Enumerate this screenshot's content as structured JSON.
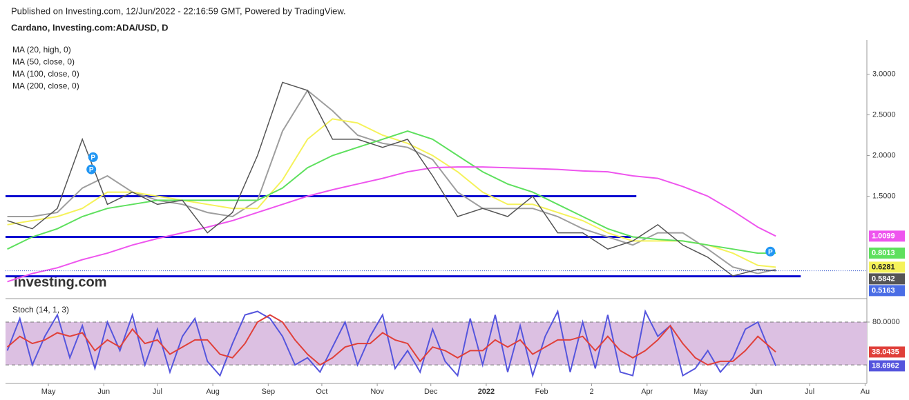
{
  "header": {
    "published": "Published on Investing.com, 12/Jun/2022 - 22:16:59 GMT, Powered by TradingView.",
    "symbol": "Cardano, Investing.com:ADA/USD, D",
    "logo": "Investing.com"
  },
  "chart_data": [
    {
      "type": "line",
      "xlim": [
        6,
        488
      ],
      "ylim": [
        0.25,
        3.42
      ],
      "yticks": [
        {
          "value": 1.5,
          "label": "1.5000"
        },
        {
          "value": 2,
          "label": "2.0000"
        },
        {
          "value": 2.5,
          "label": "2.5000"
        },
        {
          "value": 3,
          "label": "3.0000"
        }
      ],
      "x": [
        7,
        21,
        35,
        49,
        63,
        77,
        91,
        105,
        119,
        133,
        147,
        161,
        175,
        189,
        203,
        217,
        231,
        245,
        259,
        273,
        287,
        301,
        315,
        329,
        343,
        357,
        371,
        385,
        399,
        413,
        427,
        437
      ],
      "close": {
        "color": "#555555",
        "values": [
          1.2,
          1.1,
          1.35,
          2.2,
          1.4,
          1.55,
          1.4,
          1.45,
          1.05,
          1.3,
          2.0,
          2.9,
          2.8,
          2.2,
          2.2,
          2.1,
          2.2,
          1.75,
          1.25,
          1.35,
          1.25,
          1.5,
          1.05,
          1.05,
          0.85,
          0.95,
          1.15,
          0.9,
          0.75,
          0.52,
          0.6,
          0.5842
        ]
      },
      "series": [
        {
          "name": "MA (20, high, 0)",
          "color": "#9e9e9e",
          "values": [
            1.25,
            1.25,
            1.3,
            1.6,
            1.75,
            1.55,
            1.45,
            1.4,
            1.3,
            1.25,
            1.45,
            2.3,
            2.8,
            2.55,
            2.25,
            2.15,
            2.1,
            1.95,
            1.55,
            1.35,
            1.35,
            1.35,
            1.25,
            1.1,
            1.0,
            0.9,
            1.05,
            1.05,
            0.85,
            0.63,
            0.55,
            0.6
          ]
        },
        {
          "name": "MA (50, close, 0)",
          "color": "#f5f25a",
          "values": [
            1.15,
            1.2,
            1.25,
            1.35,
            1.55,
            1.55,
            1.5,
            1.45,
            1.4,
            1.35,
            1.35,
            1.7,
            2.2,
            2.45,
            2.4,
            2.25,
            2.15,
            2.0,
            1.8,
            1.55,
            1.4,
            1.4,
            1.3,
            1.2,
            1.05,
            0.95,
            0.95,
            0.95,
            0.9,
            0.8,
            0.65,
            0.6281
          ]
        },
        {
          "name": "MA (100, close, 0)",
          "color": "#5ee05e",
          "values": [
            0.85,
            1.0,
            1.1,
            1.25,
            1.35,
            1.4,
            1.45,
            1.45,
            1.45,
            1.45,
            1.45,
            1.6,
            1.85,
            2.0,
            2.1,
            2.2,
            2.3,
            2.2,
            2.0,
            1.8,
            1.65,
            1.55,
            1.4,
            1.25,
            1.1,
            1.0,
            0.97,
            0.95,
            0.9,
            0.85,
            0.8,
            0.8013
          ]
        },
        {
          "name": "MA (200, close, 0)",
          "color": "#ee55ee",
          "values": [
            0.45,
            0.55,
            0.62,
            0.72,
            0.8,
            0.9,
            0.98,
            1.05,
            1.12,
            1.2,
            1.3,
            1.4,
            1.5,
            1.58,
            1.65,
            1.72,
            1.8,
            1.85,
            1.86,
            1.86,
            1.85,
            1.84,
            1.83,
            1.81,
            1.8,
            1.75,
            1.72,
            1.62,
            1.5,
            1.32,
            1.12,
            1.0099
          ]
        }
      ],
      "levels": [
        {
          "value": 1.5,
          "end": 359,
          "color": "#0a0ad0"
        },
        {
          "value": 1.0,
          "end": 356,
          "color": "#0a0ad0"
        },
        {
          "value": 0.5163,
          "end": 451,
          "color": "#0a0ad0"
        }
      ],
      "markers": {
        "label": "P",
        "color": "#2196f3",
        "points": [
          {
            "x": 55,
            "y": 1.98
          },
          {
            "x": 54,
            "y": 1.83
          },
          {
            "x": 434,
            "y": 0.82
          }
        ]
      }
    },
    {
      "type": "line",
      "title": "Stoch (14, 1, 3)",
      "xlim": [
        6,
        488
      ],
      "ylim": [
        -5,
        108
      ],
      "yticks": [
        {
          "value": 80,
          "label": "80.0000"
        }
      ],
      "band": [
        20,
        80
      ],
      "band_color": "#dcc0e2",
      "xticks": [
        {
          "value": 30,
          "label": "May"
        },
        {
          "value": 61,
          "label": "Jun"
        },
        {
          "value": 91,
          "label": "Jul"
        },
        {
          "value": 122,
          "label": "Aug"
        },
        {
          "value": 153,
          "label": "Sep"
        },
        {
          "value": 183,
          "label": "Oct"
        },
        {
          "value": 214,
          "label": "Nov"
        },
        {
          "value": 244,
          "label": "Dec"
        },
        {
          "value": 275,
          "label": "2022"
        },
        {
          "value": 306,
          "label": "Feb"
        },
        {
          "value": 334,
          "label": "2"
        },
        {
          "value": 365,
          "label": "Apr"
        },
        {
          "value": 395,
          "label": "May"
        },
        {
          "value": 426,
          "label": "Jun"
        },
        {
          "value": 456,
          "label": "Jul"
        },
        {
          "value": 487,
          "label": "Au"
        }
      ],
      "x": [
        7,
        14,
        21,
        28,
        35,
        42,
        49,
        56,
        63,
        70,
        77,
        84,
        91,
        98,
        105,
        112,
        119,
        126,
        133,
        140,
        147,
        154,
        161,
        168,
        175,
        182,
        189,
        196,
        203,
        210,
        217,
        224,
        231,
        238,
        245,
        252,
        259,
        266,
        273,
        280,
        287,
        294,
        301,
        308,
        315,
        322,
        329,
        336,
        343,
        350,
        357,
        364,
        371,
        378,
        385,
        392,
        399,
        406,
        413,
        420,
        427,
        437
      ],
      "series": [
        {
          "color": "#5555dd",
          "values": [
            40,
            85,
            20,
            60,
            90,
            30,
            75,
            15,
            80,
            40,
            90,
            20,
            70,
            10,
            60,
            85,
            25,
            5,
            50,
            90,
            95,
            85,
            60,
            20,
            30,
            10,
            45,
            80,
            20,
            60,
            90,
            15,
            40,
            10,
            70,
            25,
            5,
            85,
            20,
            90,
            10,
            75,
            5,
            60,
            95,
            10,
            80,
            15,
            90,
            10,
            5,
            95,
            60,
            75,
            5,
            15,
            40,
            10,
            30,
            70,
            80,
            18.6962
          ]
        },
        {
          "color": "#e0403a",
          "values": [
            45,
            60,
            50,
            55,
            65,
            60,
            65,
            40,
            55,
            45,
            70,
            50,
            55,
            35,
            45,
            55,
            55,
            35,
            30,
            50,
            80,
            90,
            80,
            55,
            35,
            20,
            30,
            45,
            50,
            50,
            65,
            55,
            50,
            25,
            45,
            40,
            30,
            40,
            40,
            55,
            45,
            55,
            35,
            45,
            55,
            55,
            60,
            40,
            60,
            40,
            30,
            40,
            55,
            75,
            50,
            30,
            20,
            25,
            25,
            40,
            60,
            38.0435
          ]
        }
      ]
    }
  ]
}
